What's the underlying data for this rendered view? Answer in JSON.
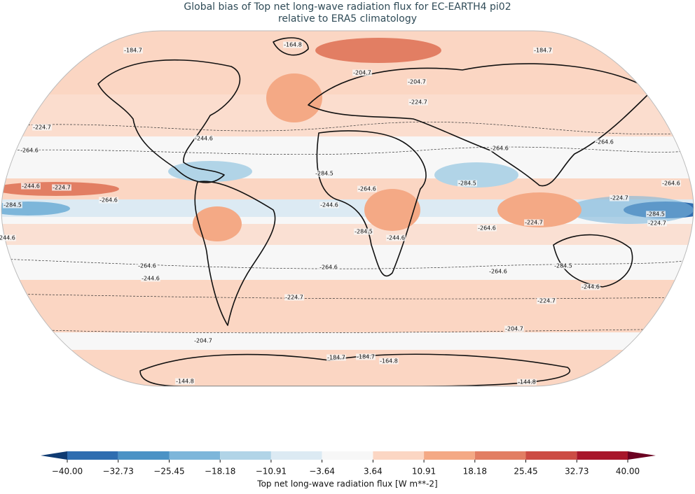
{
  "title": [
    "Global bias of Top net long-wave radiation flux for EC-EARTH4 pi02",
    "relative to ERA5 climatology"
  ],
  "colorbar": {
    "label": "Top net long-wave radiation flux [W m**-2]",
    "ticks": [
      {
        "value": -40,
        "label": "−40.00"
      },
      {
        "value": -32.73,
        "label": "−32.73"
      },
      {
        "value": -25.45,
        "label": "−25.45"
      },
      {
        "value": -18.18,
        "label": "−18.18"
      },
      {
        "value": -10.91,
        "label": "−10.91"
      },
      {
        "value": -3.64,
        "label": "−3.64"
      },
      {
        "value": 3.64,
        "label": "3.64"
      },
      {
        "value": 10.91,
        "label": "10.91"
      },
      {
        "value": 18.18,
        "label": "18.18"
      },
      {
        "value": 25.45,
        "label": "25.45"
      },
      {
        "value": 32.73,
        "label": "32.73"
      },
      {
        "value": 40,
        "label": "40.00"
      }
    ],
    "colors": [
      "#2f6db0",
      "#4b92c5",
      "#7db6da",
      "#b1d4e7",
      "#dceaf3",
      "#f7f7f7",
      "#fbd6c3",
      "#f4a985",
      "#e27e63",
      "#cc4c44",
      "#a8162b"
    ],
    "under_color": "#0f3b72",
    "over_color": "#6b0021"
  },
  "contour_labels": [
    -184.7,
    -164.8,
    -184.7,
    -204.7,
    -204.7,
    -224.7,
    -224.7,
    -264.6,
    -244.6,
    -264.6,
    -264.6,
    -284.5,
    -244.6,
    -224.7,
    -264.6,
    -284.5,
    -244.6,
    -264.6,
    -284.5,
    -224.7,
    -264.6,
    -284.5,
    -224.7,
    -224.7,
    -264.6,
    -284.5,
    -244.6,
    -244.6,
    -264.6,
    -264.6,
    -264.6,
    -284.5,
    -244.6,
    -244.6,
    -224.7,
    -224.7,
    -204.7,
    -204.7,
    -184.7,
    -184.7,
    -164.8,
    -144.8,
    -144.8
  ]
}
